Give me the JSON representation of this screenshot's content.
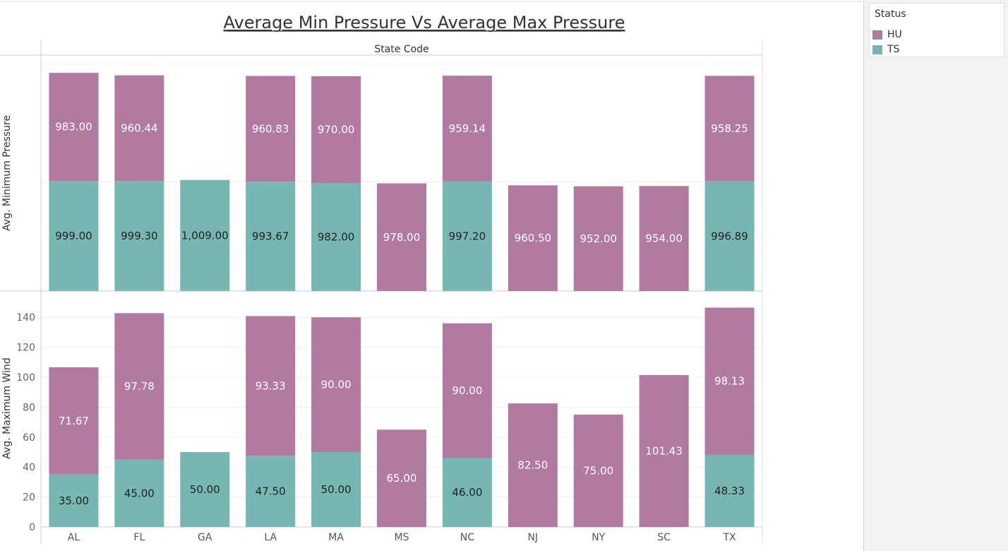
{
  "chart_data": {
    "type": "bar",
    "title": "Average Min Pressure Vs Average Max Pressure",
    "column_header": "State Code",
    "categories": [
      "AL",
      "FL",
      "GA",
      "LA",
      "MA",
      "MS",
      "NC",
      "NJ",
      "NY",
      "SC",
      "TX"
    ],
    "colors": {
      "HU": "#b07aa1",
      "TS": "#76b7b2"
    },
    "legend": {
      "title": "Status",
      "items": [
        "HU",
        "TS"
      ],
      "placement": "right"
    },
    "panels": [
      {
        "ylabel": "Avg. Minimum Pressure",
        "stacked": true,
        "show_axis": false,
        "series": [
          {
            "name": "TS",
            "values": [
              999.0,
              999.3,
              1009.0,
              993.67,
              982.0,
              null,
              997.2,
              null,
              null,
              null,
              996.89
            ],
            "labels": [
              "999.00",
              "999.30",
              "1,009.00",
              "993.67",
              "982.00",
              null,
              "997.20",
              null,
              null,
              null,
              "996.89"
            ]
          },
          {
            "name": "HU",
            "values": [
              983.0,
              960.44,
              null,
              960.83,
              970.0,
              978.0,
              959.14,
              960.5,
              952.0,
              954.0,
              958.25
            ],
            "labels": [
              "983.00",
              "960.44",
              null,
              "960.83",
              "970.00",
              "978.00",
              "959.14",
              "960.50",
              "952.00",
              "954.00",
              "958.25"
            ]
          }
        ]
      },
      {
        "ylabel": "Avg. Maximum Wind",
        "stacked": true,
        "show_axis": true,
        "ylim": [
          0,
          150
        ],
        "yticks": [
          0,
          20,
          40,
          60,
          80,
          100,
          120,
          140
        ],
        "series": [
          {
            "name": "TS",
            "values": [
              35.0,
              45.0,
              50.0,
              47.5,
              50.0,
              null,
              46.0,
              null,
              null,
              null,
              48.33
            ],
            "labels": [
              "35.00",
              "45.00",
              "50.00",
              "47.50",
              "50.00",
              null,
              "46.00",
              null,
              null,
              null,
              "48.33"
            ]
          },
          {
            "name": "HU",
            "values": [
              71.67,
              97.78,
              null,
              93.33,
              90.0,
              65.0,
              90.0,
              82.5,
              75.0,
              101.43,
              98.13
            ],
            "labels": [
              "71.67",
              "97.78",
              null,
              "93.33",
              "90.00",
              "65.00",
              "90.00",
              "82.50",
              "75.00",
              "101.43",
              "98.13"
            ]
          }
        ]
      }
    ]
  }
}
